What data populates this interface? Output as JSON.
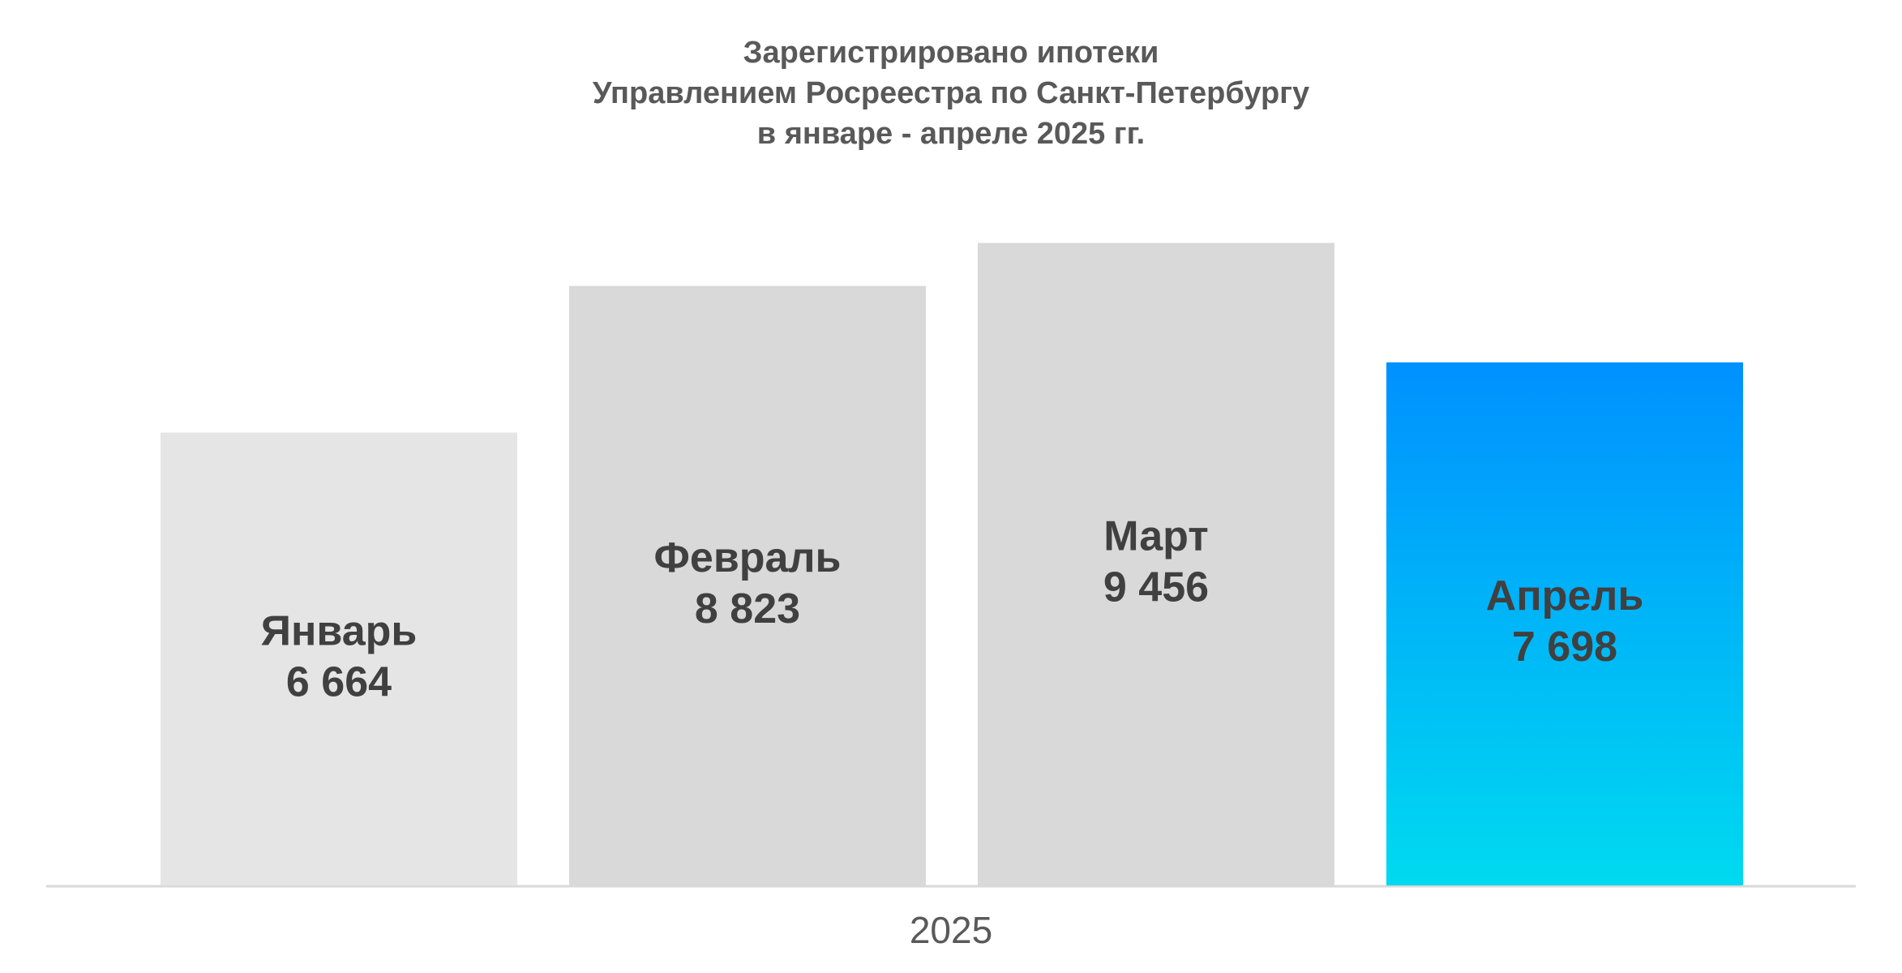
{
  "chart_data": {
    "type": "bar",
    "title": [
      "Зарегистрировано ипотеки",
      "Управлением Росреестра по Санкт-Петербургу",
      "в январе - апреле 2025 гг."
    ],
    "xlabel": "2025",
    "categories": [
      "Январь",
      "Февраль",
      "Март",
      "Апрель"
    ],
    "values": [
      6664,
      8823,
      9456,
      7698
    ],
    "value_labels": [
      "6 664",
      "8 823",
      "9 456",
      "7 698"
    ],
    "colors": [
      "#e5e5e5",
      "#d9d9d9",
      "#d9d9d9",
      [
        "#0091ff",
        "#00daf0"
      ]
    ],
    "ylim": [
      0,
      10000
    ]
  }
}
